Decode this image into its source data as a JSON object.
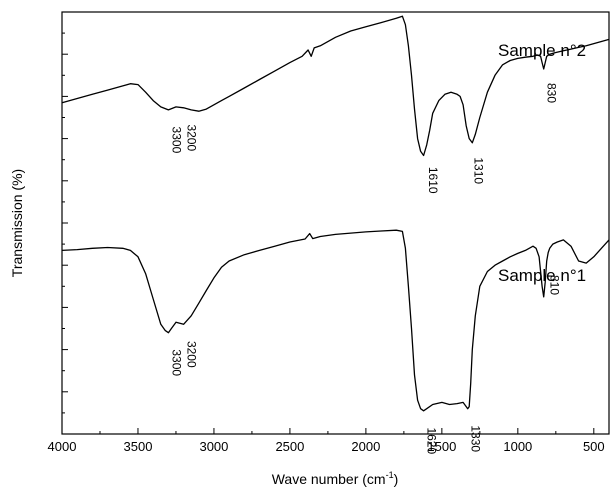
{
  "chart_data": {
    "type": "line",
    "title": "",
    "xlabel": "Wave number (cm-1)",
    "xlabel_parts": {
      "main": "Wave number (cm",
      "sup": "-1",
      "close": ")"
    },
    "ylabel": "Transmission (%)",
    "xlim": [
      4000,
      400
    ],
    "x_reversed": true,
    "y_units": "arbitrary",
    "y_ticks_labeled": false,
    "xticks": [
      4000,
      3500,
      3000,
      2500,
      2000,
      1500,
      1000,
      500
    ],
    "xtick_labels": [
      "4000",
      "3500",
      "3000",
      "2500",
      "2000",
      "1500",
      "1000",
      "500"
    ],
    "ylim": [
      0,
      100
    ],
    "grid": false,
    "legend": "none",
    "series": [
      {
        "name": "Sample n°2",
        "label": "Sample n°2",
        "x": [
          4000,
          3900,
          3800,
          3700,
          3600,
          3550,
          3500,
          3450,
          3400,
          3350,
          3300,
          3250,
          3200,
          3150,
          3100,
          3050,
          3000,
          2950,
          2900,
          2800,
          2700,
          2600,
          2500,
          2420,
          2380,
          2360,
          2340,
          2300,
          2200,
          2100,
          2000,
          1900,
          1800,
          1760,
          1740,
          1720,
          1700,
          1680,
          1660,
          1640,
          1620,
          1600,
          1580,
          1560,
          1520,
          1480,
          1440,
          1400,
          1380,
          1360,
          1340,
          1320,
          1300,
          1280,
          1250,
          1200,
          1150,
          1100,
          1050,
          1000,
          950,
          900,
          870,
          850,
          840,
          830,
          820,
          810,
          790,
          760,
          700,
          650,
          600,
          550,
          500,
          450,
          400
        ],
        "y": [
          78.5,
          79.5,
          80.5,
          81.5,
          82.5,
          83.0,
          82.8,
          81.0,
          79.0,
          77.5,
          76.8,
          77.5,
          77.3,
          76.8,
          76.5,
          77.0,
          78.0,
          79.0,
          80.0,
          82.0,
          84.0,
          86.0,
          88.0,
          89.5,
          91.0,
          89.5,
          91.5,
          92.0,
          94.0,
          95.5,
          96.5,
          97.5,
          98.5,
          99.0,
          97.0,
          92.0,
          85.0,
          77.0,
          70.0,
          67.0,
          66.0,
          68.5,
          72.0,
          76.0,
          79.0,
          80.5,
          81.0,
          80.5,
          80.0,
          78.0,
          73.0,
          70.0,
          69.0,
          71.0,
          75.0,
          81.0,
          85.0,
          87.5,
          88.5,
          89.0,
          89.3,
          89.5,
          89.8,
          89.5,
          88.0,
          86.5,
          88.0,
          89.5,
          90.0,
          90.3,
          90.8,
          91.2,
          91.6,
          92.0,
          92.5,
          93.0,
          93.5
        ]
      },
      {
        "name": "Sample n°1",
        "label": "Sample n°1",
        "x": [
          4000,
          3900,
          3800,
          3700,
          3600,
          3550,
          3500,
          3450,
          3400,
          3350,
          3320,
          3300,
          3280,
          3250,
          3200,
          3150,
          3100,
          3050,
          3000,
          2950,
          2900,
          2800,
          2700,
          2600,
          2500,
          2400,
          2370,
          2350,
          2300,
          2200,
          2100,
          2000,
          1900,
          1800,
          1760,
          1740,
          1720,
          1700,
          1680,
          1660,
          1640,
          1620,
          1600,
          1560,
          1500,
          1450,
          1400,
          1360,
          1340,
          1330,
          1320,
          1310,
          1300,
          1280,
          1250,
          1200,
          1150,
          1100,
          1050,
          1000,
          950,
          900,
          880,
          860,
          840,
          830,
          820,
          810,
          800,
          790,
          770,
          740,
          700,
          650,
          600,
          550,
          500,
          450,
          400
        ],
        "y": [
          43.5,
          43.7,
          44.0,
          44.2,
          44.0,
          43.5,
          42.0,
          38.0,
          32.0,
          26.0,
          24.5,
          24.0,
          25.0,
          26.5,
          26.0,
          28.0,
          31.0,
          34.0,
          37.0,
          39.5,
          41.0,
          42.5,
          43.5,
          44.5,
          45.5,
          46.2,
          47.5,
          46.3,
          46.8,
          47.3,
          47.6,
          47.9,
          48.1,
          48.3,
          48.0,
          44.0,
          35.0,
          25.0,
          14.0,
          8.0,
          6.0,
          5.5,
          6.0,
          7.0,
          7.5,
          7.0,
          7.2,
          7.5,
          6.5,
          6.0,
          6.5,
          12.0,
          20.0,
          28.0,
          35.0,
          38.5,
          40.0,
          41.0,
          42.0,
          42.8,
          43.5,
          44.5,
          44.0,
          42.0,
          35.0,
          32.5,
          36.0,
          41.0,
          43.0,
          44.0,
          45.0,
          45.5,
          46.0,
          44.5,
          41.0,
          40.5,
          42.0,
          44.0,
          46.0
        ]
      }
    ],
    "annotations": [
      {
        "text": "3300",
        "x": 3300,
        "series": 0,
        "rotated": true
      },
      {
        "text": "3200",
        "x": 3200,
        "series": 0,
        "rotated": true
      },
      {
        "text": "1610",
        "x": 1610,
        "series": 0,
        "rotated": true
      },
      {
        "text": "1310",
        "x": 1310,
        "series": 0,
        "rotated": true
      },
      {
        "text": "830",
        "x": 830,
        "series": 0,
        "rotated": true
      },
      {
        "text": "3300",
        "x": 3300,
        "series": 1,
        "rotated": true
      },
      {
        "text": "3200",
        "x": 3200,
        "series": 1,
        "rotated": true
      },
      {
        "text": "1620",
        "x": 1620,
        "series": 1,
        "rotated": true
      },
      {
        "text": "1330",
        "x": 1330,
        "series": 1,
        "rotated": true
      },
      {
        "text": "810",
        "x": 810,
        "series": 1,
        "rotated": true
      }
    ],
    "line_color": "#000000"
  }
}
